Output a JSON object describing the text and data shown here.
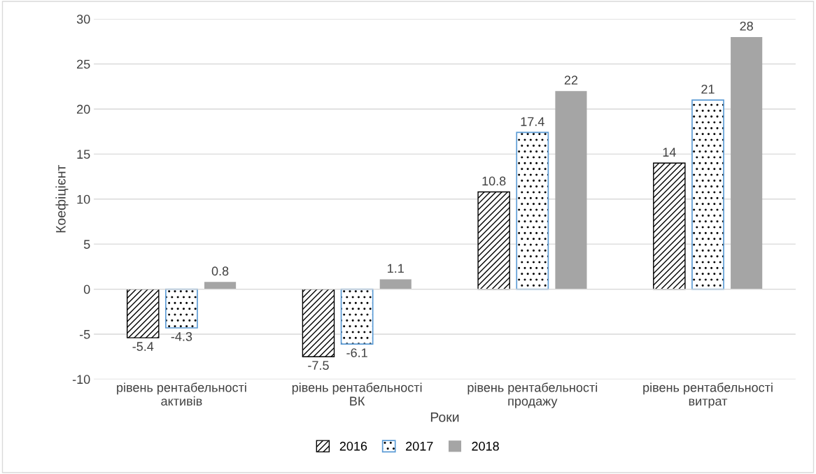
{
  "chart_data": {
    "type": "bar",
    "xlabel": "Роки",
    "ylabel": "Коефіцієнт",
    "categories": [
      "рівень рентабельності активів",
      "рівень рентабельності ВК",
      "рівень рентабельності продажу",
      "рівень рентабельності витрат"
    ],
    "series": [
      {
        "name": "2016",
        "color": "#000000",
        "values": [
          -5.4,
          -7.5,
          10.8,
          14
        ]
      },
      {
        "name": "2017",
        "color": "#5b9bd5",
        "values": [
          -4.3,
          -6.1,
          17.4,
          21
        ]
      },
      {
        "name": "2018",
        "color": "#a5a5a5",
        "values": [
          0.8,
          1.1,
          22,
          28
        ]
      }
    ],
    "ylim": [
      -10,
      30
    ],
    "yticks": [
      -10,
      -5,
      0,
      5,
      10,
      15,
      20,
      25,
      30
    ],
    "grid": "y",
    "legend": "bottom",
    "data_labels": true
  }
}
